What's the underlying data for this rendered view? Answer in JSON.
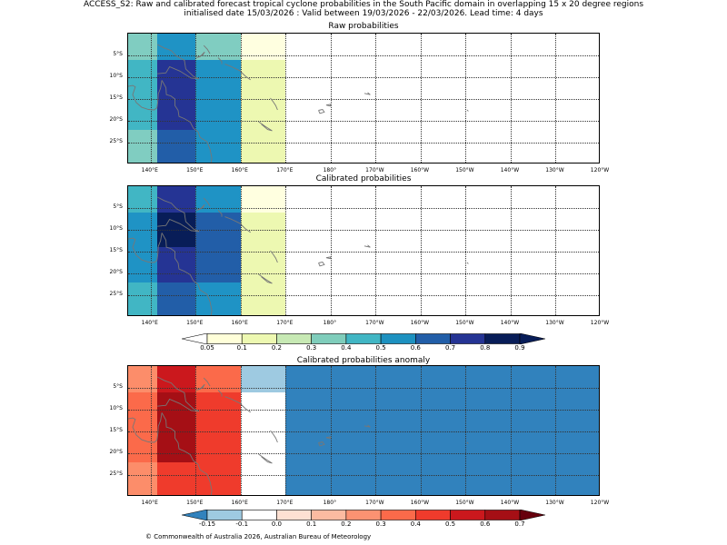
{
  "suptitle": {
    "line1": "ACCESS_S2: Raw and calibrated forecast tropical cyclone probabilities in the South Pacific domain in overlapping 15 x 20 degree regions",
    "line2": "initialised date 15/03/2026 :  Valid between 19/03/2026 - 22/03/2026. Lead time: 4 days"
  },
  "lon_labels": [
    "140°E",
    "150°E",
    "160°E",
    "170°E",
    "180°",
    "170°W",
    "160°W",
    "150°W",
    "140°W",
    "130°W",
    "120°W"
  ],
  "lat_labels": [
    "5°S",
    "10°S",
    "15°S",
    "20°S",
    "25°S"
  ],
  "panels": [
    {
      "title": "Raw probabilities",
      "cells": [
        {
          "lon": [
            135,
            141.5
          ],
          "lat": [
            0,
            -6
          ],
          "color": "#80cdc1"
        },
        {
          "lon": [
            141.5,
            150
          ],
          "lat": [
            0,
            -6
          ],
          "color": "#1f93c5"
        },
        {
          "lon": [
            150,
            160
          ],
          "lat": [
            0,
            -6
          ],
          "color": "#80cdc1"
        },
        {
          "lon": [
            160,
            170
          ],
          "lat": [
            0,
            -6
          ],
          "color": "#ffffe0"
        },
        {
          "lon": [
            135,
            141.5
          ],
          "lat": [
            -6,
            -22
          ],
          "color": "#41b6c4"
        },
        {
          "lon": [
            141.5,
            150
          ],
          "lat": [
            -6,
            -22
          ],
          "color": "#253494"
        },
        {
          "lon": [
            150,
            160
          ],
          "lat": [
            -6,
            -30
          ],
          "color": "#1f93c5"
        },
        {
          "lon": [
            160,
            170
          ],
          "lat": [
            -6,
            -30
          ],
          "color": "#edf8b1"
        },
        {
          "lon": [
            135,
            141.5
          ],
          "lat": [
            -22,
            -30
          ],
          "color": "#80cdc1"
        },
        {
          "lon": [
            141.5,
            150
          ],
          "lat": [
            -22,
            -30
          ],
          "color": "#225ea8"
        }
      ]
    },
    {
      "title": "Calibrated probabilities",
      "cells": [
        {
          "lon": [
            135,
            141.5
          ],
          "lat": [
            0,
            -6
          ],
          "color": "#41b6c4"
        },
        {
          "lon": [
            141.5,
            150
          ],
          "lat": [
            0,
            -6
          ],
          "color": "#253494"
        },
        {
          "lon": [
            150,
            160
          ],
          "lat": [
            0,
            -6
          ],
          "color": "#1f93c5"
        },
        {
          "lon": [
            160,
            170
          ],
          "lat": [
            0,
            -6
          ],
          "color": "#ffffe0"
        },
        {
          "lon": [
            135,
            141.5
          ],
          "lat": [
            -6,
            -22
          ],
          "color": "#1f93c5"
        },
        {
          "lon": [
            141.5,
            150
          ],
          "lat": [
            -6,
            -14
          ],
          "color": "#081d58"
        },
        {
          "lon": [
            141.5,
            150
          ],
          "lat": [
            -14,
            -22
          ],
          "color": "#253494"
        },
        {
          "lon": [
            150,
            160
          ],
          "lat": [
            -6,
            -22
          ],
          "color": "#225ea8"
        },
        {
          "lon": [
            160,
            170
          ],
          "lat": [
            -6,
            -30
          ],
          "color": "#edf8b1"
        },
        {
          "lon": [
            135,
            141.5
          ],
          "lat": [
            -22,
            -30
          ],
          "color": "#41b6c4"
        },
        {
          "lon": [
            141.5,
            150
          ],
          "lat": [
            -22,
            -30
          ],
          "color": "#225ea8"
        },
        {
          "lon": [
            150,
            160
          ],
          "lat": [
            -22,
            -30
          ],
          "color": "#1f93c5"
        }
      ]
    },
    {
      "title": "Calibrated probabilities anomaly",
      "cells": [
        {
          "lon": [
            135,
            141.5
          ],
          "lat": [
            0,
            -6
          ],
          "color": "#fc8d6a"
        },
        {
          "lon": [
            141.5,
            150
          ],
          "lat": [
            0,
            -6
          ],
          "color": "#cb181d"
        },
        {
          "lon": [
            150,
            160
          ],
          "lat": [
            0,
            -6
          ],
          "color": "#fb6a4a"
        },
        {
          "lon": [
            160,
            170
          ],
          "lat": [
            0,
            -6
          ],
          "color": "#9ecae1"
        },
        {
          "lon": [
            135,
            141.5
          ],
          "lat": [
            -6,
            -22
          ],
          "color": "#fb6a4a"
        },
        {
          "lon": [
            141.5,
            150
          ],
          "lat": [
            -6,
            -22
          ],
          "color": "#a50f15"
        },
        {
          "lon": [
            150,
            160
          ],
          "lat": [
            -6,
            -30
          ],
          "color": "#ef3b2c"
        },
        {
          "lon": [
            160,
            170
          ],
          "lat": [
            -6,
            -30
          ],
          "color": "#ffffff"
        },
        {
          "lon": [
            135,
            141.5
          ],
          "lat": [
            -22,
            -30
          ],
          "color": "#fc8d6a"
        },
        {
          "lon": [
            141.5,
            150
          ],
          "lat": [
            -22,
            -30
          ],
          "color": "#ef3b2c"
        },
        {
          "lon": [
            170,
            240
          ],
          "lat": [
            0,
            -30
          ],
          "color": "#3182bd"
        }
      ]
    }
  ],
  "colorbar_prob": {
    "ticks": [
      "0.05",
      "0.1",
      "0.2",
      "0.3",
      "0.4",
      "0.5",
      "0.6",
      "0.7",
      "0.8",
      "0.9"
    ],
    "colors": [
      "#ffffd9",
      "#edf8b1",
      "#c7e9b4",
      "#7fcdbb",
      "#41b6c4",
      "#1d91c0",
      "#225ea8",
      "#253494",
      "#081d58"
    ],
    "under": "#ffffff",
    "over": "#081d58"
  },
  "colorbar_anom": {
    "ticks": [
      "-0.15",
      "-0.1",
      "0.0",
      "0.1",
      "0.2",
      "0.3",
      "0.4",
      "0.5",
      "0.6",
      "0.7"
    ],
    "colors": [
      "#9ecae1",
      "#ffffff",
      "#fee0d2",
      "#fcbba1",
      "#fc9272",
      "#fb6a4a",
      "#ef3b2c",
      "#cb181d",
      "#a50f15"
    ],
    "under": "#3182bd",
    "over": "#67000d"
  },
  "footer": "© Commonwealth of Australia 2026, Australian Bureau of Meteorology"
}
